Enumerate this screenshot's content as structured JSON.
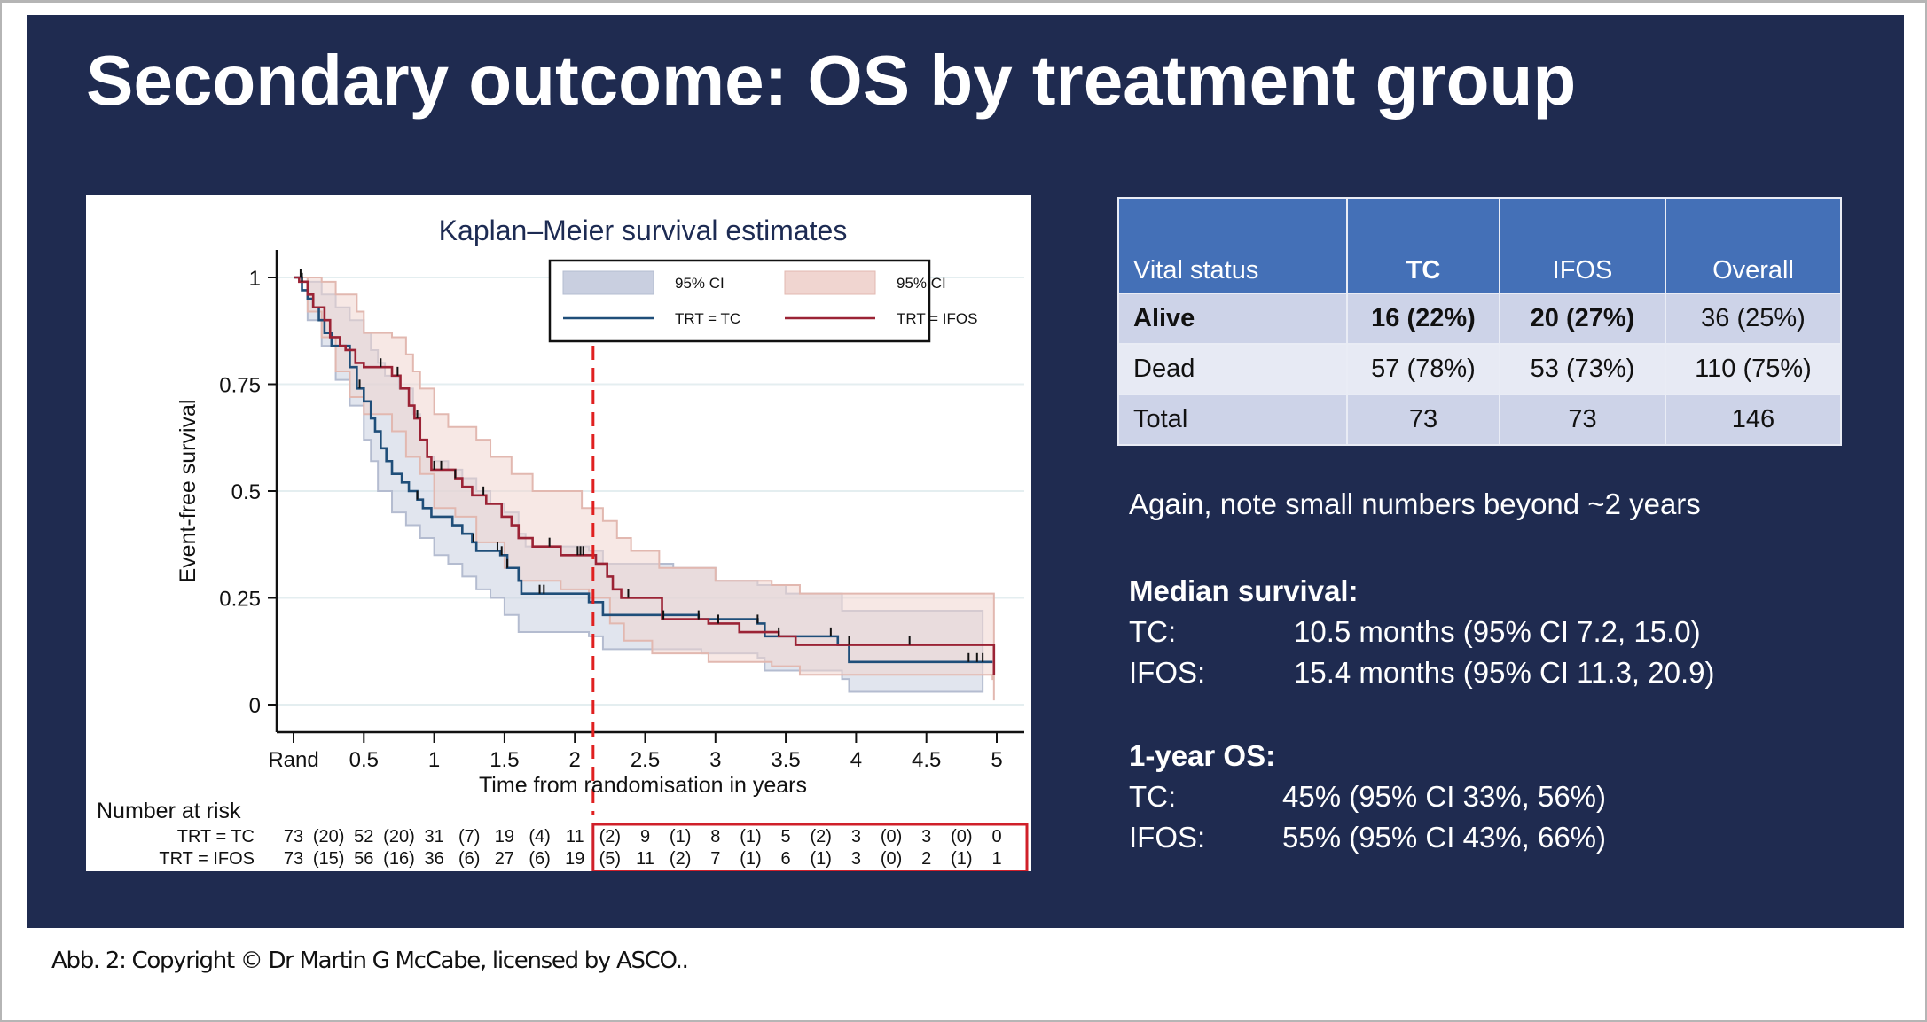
{
  "slide": {
    "title": "Secondary outcome: OS by treatment group",
    "background_color": "#1f2b50"
  },
  "chart_data": {
    "type": "line",
    "subtype": "kaplan-meier-step",
    "title": "Kaplan–Meier survival estimates",
    "xlabel": "Time from randomisation in years",
    "ylabel": "Event-free survival",
    "xlim": [
      0,
      5
    ],
    "ylim": [
      0,
      1
    ],
    "x_ticks": [
      0,
      0.5,
      1,
      1.5,
      2,
      2.5,
      3,
      3.5,
      4,
      4.5,
      5
    ],
    "x_tick_labels": [
      "Rand",
      "0.5",
      "1",
      "1.5",
      "2",
      "2.5",
      "3",
      "3.5",
      "4",
      "4.5",
      "5"
    ],
    "y_ticks": [
      0,
      0.25,
      0.5,
      0.75,
      1
    ],
    "y_tick_labels": [
      "0",
      "0.25",
      "0.5",
      "0.75",
      "1"
    ],
    "grid": true,
    "legend_position": "top-right",
    "legend": [
      {
        "label": "95% CI",
        "kind": "band",
        "series": "TC"
      },
      {
        "label": "95% CI",
        "kind": "band",
        "series": "IFOS"
      },
      {
        "label": "TRT = TC",
        "kind": "line",
        "series": "TC"
      },
      {
        "label": "TRT = IFOS",
        "kind": "line",
        "series": "IFOS"
      }
    ],
    "reference_line": {
      "x": 2.13,
      "style": "dashed",
      "color": "#e02020"
    },
    "series": [
      {
        "name": "TRT = TC",
        "color": "#1f4e79",
        "band_color": "#c9cfe0",
        "steps": [
          [
            0,
            1
          ],
          [
            0.06,
            0.97
          ],
          [
            0.1,
            0.95
          ],
          [
            0.14,
            0.93
          ],
          [
            0.18,
            0.9
          ],
          [
            0.22,
            0.87
          ],
          [
            0.27,
            0.84
          ],
          [
            0.4,
            0.79
          ],
          [
            0.45,
            0.74
          ],
          [
            0.5,
            0.71
          ],
          [
            0.55,
            0.67
          ],
          [
            0.58,
            0.64
          ],
          [
            0.62,
            0.6
          ],
          [
            0.66,
            0.57
          ],
          [
            0.7,
            0.54
          ],
          [
            0.77,
            0.52
          ],
          [
            0.82,
            0.5
          ],
          [
            0.88,
            0.48
          ],
          [
            0.92,
            0.46
          ],
          [
            0.98,
            0.44
          ],
          [
            1.05,
            0.44
          ],
          [
            1.13,
            0.42
          ],
          [
            1.2,
            0.4
          ],
          [
            1.27,
            0.38
          ],
          [
            1.3,
            0.36
          ],
          [
            1.47,
            0.35
          ],
          [
            1.52,
            0.32
          ],
          [
            1.6,
            0.29
          ],
          [
            1.62,
            0.26
          ],
          [
            2.1,
            0.24
          ],
          [
            2.2,
            0.21
          ],
          [
            2.88,
            0.2
          ],
          [
            3.3,
            0.19
          ],
          [
            3.35,
            0.16
          ],
          [
            3.87,
            0.14
          ],
          [
            3.95,
            0.1
          ],
          [
            4.97,
            0.1
          ]
        ],
        "ci_upper": [
          [
            0,
            1
          ],
          [
            0.1,
            0.99
          ],
          [
            0.2,
            0.96
          ],
          [
            0.3,
            0.93
          ],
          [
            0.4,
            0.9
          ],
          [
            0.5,
            0.87
          ],
          [
            0.55,
            0.83
          ],
          [
            0.6,
            0.8
          ],
          [
            0.65,
            0.77
          ],
          [
            0.75,
            0.74
          ],
          [
            0.85,
            0.68
          ],
          [
            0.9,
            0.62
          ],
          [
            0.95,
            0.58
          ],
          [
            1.0,
            0.57
          ],
          [
            1.1,
            0.55
          ],
          [
            1.2,
            0.53
          ],
          [
            1.3,
            0.5
          ],
          [
            1.4,
            0.47
          ],
          [
            1.5,
            0.45
          ],
          [
            1.6,
            0.4
          ],
          [
            1.65,
            0.37
          ],
          [
            2.1,
            0.36
          ],
          [
            2.2,
            0.33
          ],
          [
            2.7,
            0.32
          ],
          [
            3.0,
            0.29
          ],
          [
            3.3,
            0.28
          ],
          [
            3.5,
            0.26
          ],
          [
            3.9,
            0.22
          ],
          [
            4.9,
            0.22
          ]
        ],
        "ci_lower": [
          [
            0,
            1
          ],
          [
            0.1,
            0.9
          ],
          [
            0.2,
            0.84
          ],
          [
            0.3,
            0.76
          ],
          [
            0.4,
            0.7
          ],
          [
            0.5,
            0.62
          ],
          [
            0.55,
            0.57
          ],
          [
            0.6,
            0.5
          ],
          [
            0.7,
            0.45
          ],
          [
            0.8,
            0.42
          ],
          [
            0.9,
            0.39
          ],
          [
            1.0,
            0.35
          ],
          [
            1.1,
            0.33
          ],
          [
            1.2,
            0.3
          ],
          [
            1.3,
            0.27
          ],
          [
            1.4,
            0.25
          ],
          [
            1.5,
            0.21
          ],
          [
            1.6,
            0.17
          ],
          [
            2.1,
            0.16
          ],
          [
            2.2,
            0.13
          ],
          [
            2.9,
            0.12
          ],
          [
            3.3,
            0.11
          ],
          [
            3.35,
            0.08
          ],
          [
            3.9,
            0.06
          ],
          [
            3.95,
            0.03
          ],
          [
            4.9,
            0.03
          ]
        ],
        "censor_times": [
          0.05,
          0.47,
          0.88,
          1.28,
          1.45,
          1.48,
          1.52,
          1.75,
          1.78,
          2.88,
          3.3,
          3.82,
          4.8,
          4.86,
          4.9
        ]
      },
      {
        "name": "TRT = IFOS",
        "color": "#9b2335",
        "band_color": "#f0d5d0",
        "steps": [
          [
            0,
            1
          ],
          [
            0.04,
            0.99
          ],
          [
            0.1,
            0.96
          ],
          [
            0.14,
            0.93
          ],
          [
            0.22,
            0.9
          ],
          [
            0.26,
            0.86
          ],
          [
            0.33,
            0.84
          ],
          [
            0.37,
            0.83
          ],
          [
            0.44,
            0.8
          ],
          [
            0.5,
            0.79
          ],
          [
            0.7,
            0.77
          ],
          [
            0.76,
            0.74
          ],
          [
            0.82,
            0.7
          ],
          [
            0.86,
            0.67
          ],
          [
            0.9,
            0.62
          ],
          [
            0.95,
            0.58
          ],
          [
            0.98,
            0.55
          ],
          [
            1.15,
            0.53
          ],
          [
            1.2,
            0.51
          ],
          [
            1.27,
            0.49
          ],
          [
            1.37,
            0.47
          ],
          [
            1.48,
            0.44
          ],
          [
            1.55,
            0.42
          ],
          [
            1.6,
            0.39
          ],
          [
            1.7,
            0.37
          ],
          [
            1.9,
            0.35
          ],
          [
            2.15,
            0.33
          ],
          [
            2.23,
            0.3
          ],
          [
            2.27,
            0.27
          ],
          [
            2.33,
            0.25
          ],
          [
            2.62,
            0.2
          ],
          [
            2.95,
            0.19
          ],
          [
            3.17,
            0.17
          ],
          [
            3.45,
            0.16
          ],
          [
            3.57,
            0.14
          ],
          [
            4.97,
            0.14
          ],
          [
            4.98,
            0.07
          ]
        ],
        "ci_upper": [
          [
            0,
            1
          ],
          [
            0.1,
            1
          ],
          [
            0.2,
            0.99
          ],
          [
            0.3,
            0.96
          ],
          [
            0.45,
            0.92
          ],
          [
            0.5,
            0.87
          ],
          [
            0.7,
            0.86
          ],
          [
            0.8,
            0.82
          ],
          [
            0.85,
            0.78
          ],
          [
            0.9,
            0.74
          ],
          [
            1.0,
            0.68
          ],
          [
            1.1,
            0.65
          ],
          [
            1.3,
            0.62
          ],
          [
            1.4,
            0.58
          ],
          [
            1.55,
            0.54
          ],
          [
            1.7,
            0.5
          ],
          [
            2.05,
            0.46
          ],
          [
            2.2,
            0.43
          ],
          [
            2.3,
            0.39
          ],
          [
            2.4,
            0.36
          ],
          [
            2.6,
            0.32
          ],
          [
            3.0,
            0.29
          ],
          [
            3.4,
            0.28
          ],
          [
            3.6,
            0.26
          ],
          [
            4.97,
            0.26
          ],
          [
            4.98,
            0.2
          ]
        ],
        "ci_lower": [
          [
            0,
            1
          ],
          [
            0.1,
            0.92
          ],
          [
            0.2,
            0.86
          ],
          [
            0.3,
            0.78
          ],
          [
            0.4,
            0.72
          ],
          [
            0.5,
            0.68
          ],
          [
            0.7,
            0.64
          ],
          [
            0.8,
            0.58
          ],
          [
            0.9,
            0.54
          ],
          [
            1.0,
            0.46
          ],
          [
            1.15,
            0.44
          ],
          [
            1.3,
            0.38
          ],
          [
            1.5,
            0.32
          ],
          [
            1.6,
            0.29
          ],
          [
            1.9,
            0.27
          ],
          [
            2.1,
            0.25
          ],
          [
            2.25,
            0.19
          ],
          [
            2.35,
            0.15
          ],
          [
            2.55,
            0.12
          ],
          [
            2.95,
            0.1
          ],
          [
            3.4,
            0.09
          ],
          [
            3.6,
            0.07
          ],
          [
            4.97,
            0.06
          ],
          [
            4.98,
            0.01
          ]
        ],
        "censor_times": [
          0.06,
          0.62,
          0.74,
          0.88,
          1.0,
          1.05,
          1.15,
          1.35,
          1.82,
          2.02,
          2.04,
          2.06,
          2.38,
          2.63,
          3.02,
          3.45,
          3.95,
          4.38
        ]
      }
    ],
    "risk_table": {
      "heading": "Number at risk",
      "rows": [
        {
          "label": "TRT = TC",
          "cells": [
            "73",
            "(20)",
            "52",
            "(20)",
            "31",
            "(7)",
            "19",
            "(4)",
            "11",
            "(2)",
            "9",
            "(1)",
            "8",
            "(1)",
            "5",
            "(2)",
            "3",
            "(0)",
            "3",
            "(0)",
            "0"
          ]
        },
        {
          "label": "TRT = IFOS",
          "cells": [
            "73",
            "(15)",
            "56",
            "(16)",
            "36",
            "(6)",
            "27",
            "(6)",
            "19",
            "(5)",
            "11",
            "(2)",
            "7",
            "(1)",
            "6",
            "(1)",
            "3",
            "(0)",
            "2",
            "(1)",
            "1"
          ]
        }
      ],
      "highlight_from_year": 2.13,
      "highlight_color": "#d0202a"
    }
  },
  "table": {
    "headers": [
      "Vital status",
      "TC",
      "IFOS",
      "Overall"
    ],
    "header_color": "#4470b7",
    "rows": [
      {
        "cells": [
          "Alive",
          "16 (22%)",
          "20 (27%)",
          "36 (25%)"
        ],
        "bold": [
          true,
          true,
          true,
          false
        ]
      },
      {
        "cells": [
          "Dead",
          "57 (78%)",
          "53 (73%)",
          "110 (75%)"
        ],
        "bold": [
          false,
          false,
          false,
          false
        ]
      },
      {
        "cells": [
          "Total",
          "73",
          "73",
          "146"
        ],
        "bold": [
          false,
          false,
          false,
          false
        ]
      }
    ]
  },
  "notes": {
    "caveat": "Again, note small numbers beyond ~2 years",
    "median": {
      "heading": "Median survival:",
      "rows": [
        {
          "key": "TC:",
          "value": "10.5 months (95% CI 7.2, 15.0)"
        },
        {
          "key": "IFOS:",
          "value": "15.4 months (95% CI 11.3, 20.9)"
        }
      ]
    },
    "one_year_os": {
      "heading": "1-year OS:",
      "rows": [
        {
          "key": "TC:",
          "value": "45% (95% CI 33%, 56%)"
        },
        {
          "key": "IFOS:",
          "value": "55% (95% CI 43%, 66%)"
        }
      ]
    }
  },
  "caption": "Abb. 2: Copyright © Dr Martin G McCabe, licensed by ASCO.."
}
